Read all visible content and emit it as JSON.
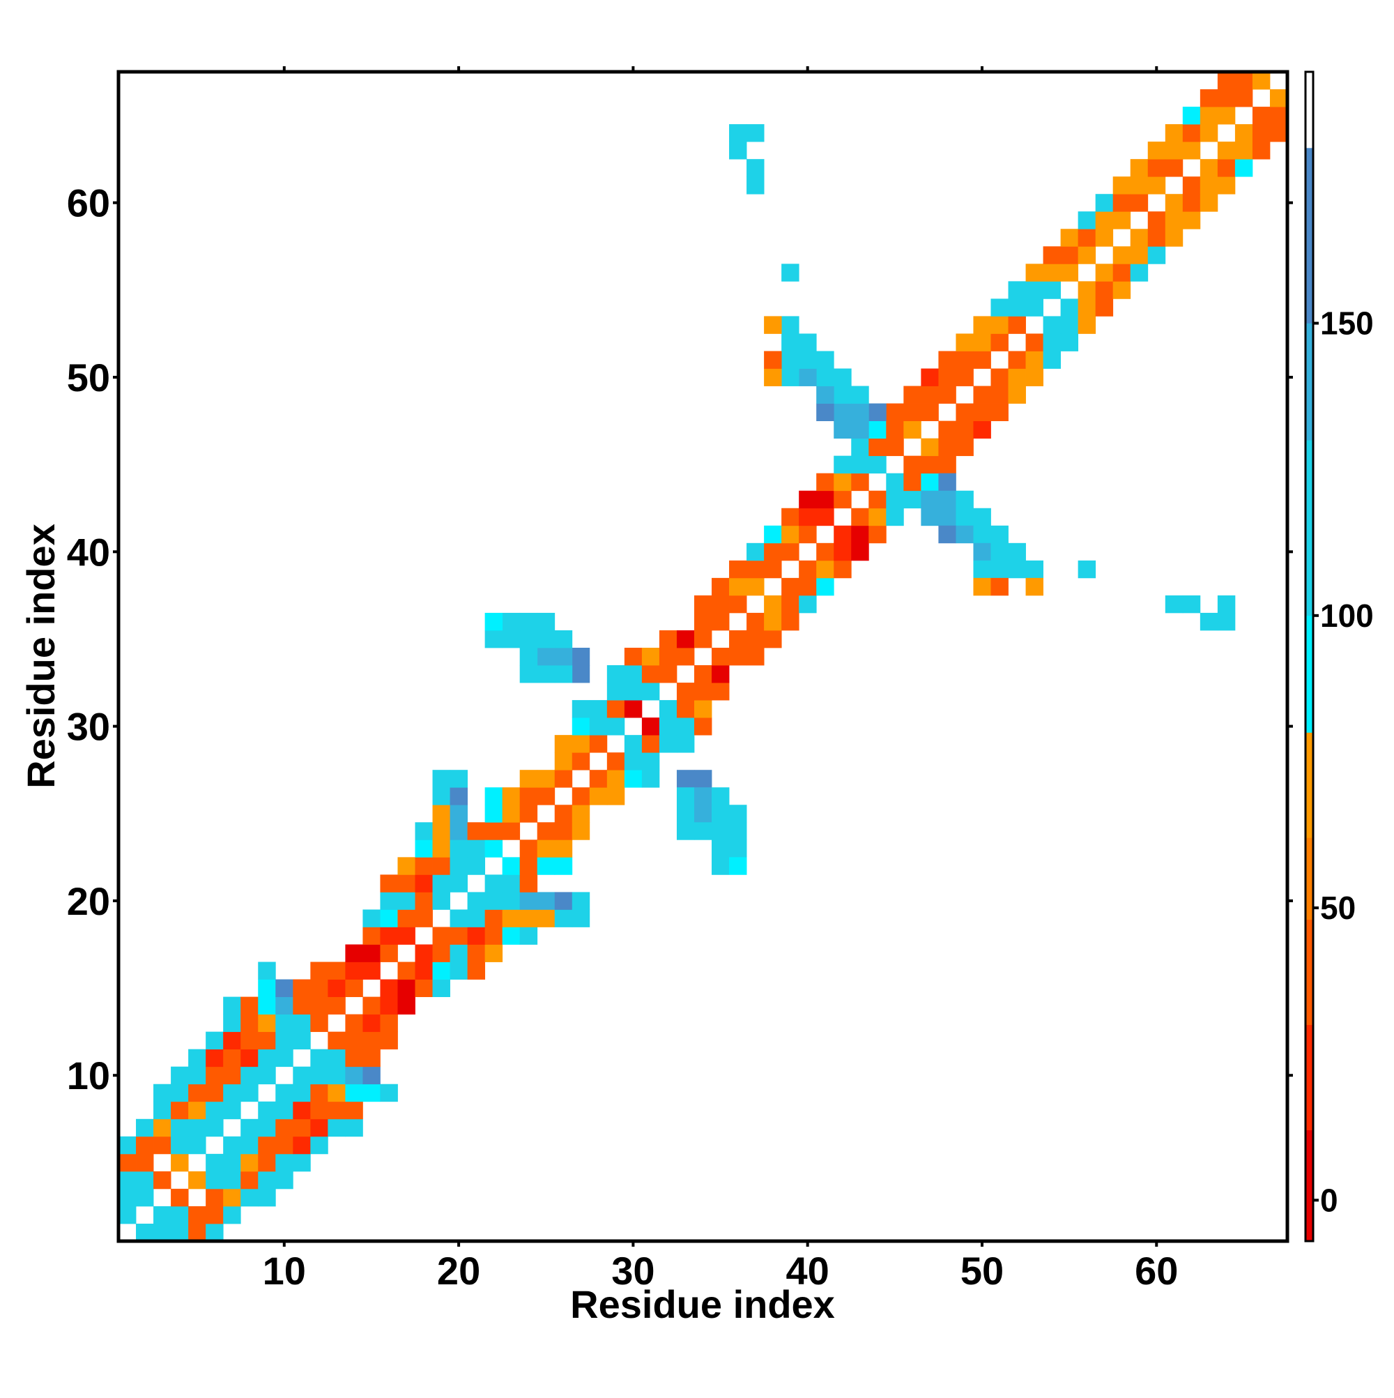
{
  "chart_data": {
    "type": "heatmap",
    "xlabel": "Residue index",
    "ylabel": "Residue index",
    "xlim": [
      0.5,
      67.5
    ],
    "ylim": [
      0.5,
      67.5
    ],
    "xticks": [
      10,
      20,
      30,
      40,
      50,
      60
    ],
    "yticks": [
      10,
      20,
      30,
      40,
      50,
      60
    ],
    "symmetric": true,
    "clim": [
      -7,
      193
    ],
    "cticks": [
      0,
      50,
      100,
      150
    ],
    "colorscale": [
      {
        "value": -7,
        "color": "#e60000"
      },
      {
        "value": 12,
        "color": "#ff2a00"
      },
      {
        "value": 30,
        "color": "#ff5a00"
      },
      {
        "value": 48,
        "color": "#ff7f00"
      },
      {
        "value": 62,
        "color": "#ff9a00"
      },
      {
        "value": 80,
        "color": "#00f0ff"
      },
      {
        "value": 100,
        "color": "#1ed2e8"
      },
      {
        "value": 130,
        "color": "#36b0dc"
      },
      {
        "value": 150,
        "color": "#4a88c8"
      },
      {
        "value": 180,
        "color": "#ffffff"
      }
    ],
    "cells": [
      [
        2,
        1,
        120
      ],
      [
        3,
        1,
        120
      ],
      [
        4,
        1,
        120
      ],
      [
        5,
        1,
        40
      ],
      [
        6,
        1,
        120
      ],
      [
        3,
        2,
        120
      ],
      [
        4,
        2,
        120
      ],
      [
        5,
        2,
        40
      ],
      [
        6,
        2,
        40
      ],
      [
        7,
        2,
        120
      ],
      [
        4,
        3,
        40
      ],
      [
        6,
        3,
        40
      ],
      [
        7,
        3,
        65
      ],
      [
        8,
        3,
        120
      ],
      [
        9,
        3,
        120
      ],
      [
        5,
        4,
        65
      ],
      [
        6,
        4,
        120
      ],
      [
        7,
        4,
        120
      ],
      [
        8,
        4,
        40
      ],
      [
        9,
        4,
        120
      ],
      [
        10,
        4,
        120
      ],
      [
        6,
        5,
        120
      ],
      [
        7,
        5,
        120
      ],
      [
        8,
        5,
        65
      ],
      [
        9,
        5,
        40
      ],
      [
        10,
        5,
        120
      ],
      [
        11,
        5,
        120
      ],
      [
        7,
        6,
        120
      ],
      [
        8,
        6,
        120
      ],
      [
        9,
        6,
        40
      ],
      [
        10,
        6,
        40
      ],
      [
        11,
        6,
        25
      ],
      [
        12,
        6,
        120
      ],
      [
        8,
        7,
        120
      ],
      [
        9,
        7,
        120
      ],
      [
        10,
        7,
        40
      ],
      [
        11,
        7,
        40
      ],
      [
        12,
        7,
        25
      ],
      [
        13,
        7,
        120
      ],
      [
        14,
        7,
        120
      ],
      [
        9,
        8,
        120
      ],
      [
        10,
        8,
        120
      ],
      [
        11,
        8,
        25
      ],
      [
        12,
        8,
        40
      ],
      [
        13,
        8,
        40
      ],
      [
        14,
        8,
        40
      ],
      [
        10,
        9,
        120
      ],
      [
        11,
        9,
        120
      ],
      [
        12,
        9,
        40
      ],
      [
        13,
        9,
        65
      ],
      [
        14,
        9,
        90
      ],
      [
        15,
        9,
        90
      ],
      [
        16,
        9,
        120
      ],
      [
        11,
        10,
        120
      ],
      [
        12,
        10,
        120
      ],
      [
        13,
        10,
        120
      ],
      [
        14,
        10,
        140
      ],
      [
        15,
        10,
        165
      ],
      [
        12,
        11,
        120
      ],
      [
        13,
        11,
        120
      ],
      [
        14,
        11,
        40
      ],
      [
        15,
        11,
        40
      ],
      [
        13,
        12,
        40
      ],
      [
        14,
        12,
        40
      ],
      [
        15,
        12,
        40
      ],
      [
        16,
        12,
        40
      ],
      [
        14,
        13,
        40
      ],
      [
        15,
        13,
        25
      ],
      [
        16,
        13,
        40
      ],
      [
        15,
        14,
        40
      ],
      [
        16,
        14,
        25
      ],
      [
        17,
        14,
        5
      ],
      [
        16,
        15,
        25
      ],
      [
        17,
        15,
        5
      ],
      [
        18,
        15,
        40
      ],
      [
        19,
        15,
        120
      ],
      [
        17,
        16,
        40
      ],
      [
        18,
        16,
        25
      ],
      [
        19,
        16,
        90
      ],
      [
        20,
        16,
        120
      ],
      [
        21,
        16,
        40
      ],
      [
        18,
        17,
        25
      ],
      [
        19,
        17,
        40
      ],
      [
        20,
        17,
        120
      ],
      [
        21,
        17,
        40
      ],
      [
        22,
        17,
        65
      ],
      [
        19,
        18,
        40
      ],
      [
        20,
        18,
        40
      ],
      [
        21,
        18,
        25
      ],
      [
        22,
        18,
        40
      ],
      [
        23,
        18,
        90
      ],
      [
        24,
        18,
        120
      ],
      [
        20,
        19,
        120
      ],
      [
        21,
        19,
        120
      ],
      [
        22,
        19,
        40
      ],
      [
        23,
        19,
        65
      ],
      [
        24,
        19,
        65
      ],
      [
        25,
        19,
        65
      ],
      [
        26,
        19,
        120
      ],
      [
        27,
        19,
        120
      ],
      [
        21,
        20,
        120
      ],
      [
        22,
        20,
        120
      ],
      [
        23,
        20,
        120
      ],
      [
        24,
        20,
        140
      ],
      [
        25,
        20,
        140
      ],
      [
        26,
        20,
        165
      ],
      [
        27,
        20,
        120
      ],
      [
        22,
        21,
        120
      ],
      [
        23,
        21,
        120
      ],
      [
        24,
        21,
        40
      ],
      [
        23,
        22,
        90
      ],
      [
        24,
        22,
        40
      ],
      [
        25,
        22,
        90
      ],
      [
        26,
        22,
        90
      ],
      [
        24,
        23,
        40
      ],
      [
        25,
        23,
        65
      ],
      [
        26,
        23,
        65
      ],
      [
        25,
        24,
        40
      ],
      [
        26,
        24,
        40
      ],
      [
        27,
        24,
        65
      ],
      [
        26,
        25,
        40
      ],
      [
        27,
        25,
        65
      ],
      [
        27,
        26,
        40
      ],
      [
        28,
        26,
        65
      ],
      [
        29,
        26,
        65
      ],
      [
        28,
        27,
        40
      ],
      [
        29,
        27,
        65
      ],
      [
        30,
        27,
        90
      ],
      [
        31,
        27,
        120
      ],
      [
        29,
        28,
        40
      ],
      [
        30,
        28,
        120
      ],
      [
        31,
        28,
        120
      ],
      [
        30,
        29,
        120
      ],
      [
        31,
        29,
        40
      ],
      [
        32,
        29,
        120
      ],
      [
        33,
        29,
        120
      ],
      [
        31,
        30,
        5
      ],
      [
        32,
        30,
        120
      ],
      [
        33,
        30,
        120
      ],
      [
        34,
        30,
        40
      ],
      [
        32,
        31,
        120
      ],
      [
        33,
        31,
        40
      ],
      [
        34,
        31,
        65
      ],
      [
        33,
        32,
        40
      ],
      [
        34,
        32,
        40
      ],
      [
        35,
        32,
        40
      ],
      [
        34,
        33,
        40
      ],
      [
        35,
        33,
        5
      ],
      [
        35,
        34,
        40
      ],
      [
        36,
        34,
        40
      ],
      [
        37,
        34,
        40
      ],
      [
        36,
        35,
        40
      ],
      [
        37,
        35,
        40
      ],
      [
        38,
        35,
        40
      ],
      [
        37,
        36,
        40
      ],
      [
        38,
        36,
        65
      ],
      [
        39,
        36,
        40
      ],
      [
        38,
        37,
        65
      ],
      [
        39,
        37,
        40
      ],
      [
        40,
        37,
        120
      ],
      [
        39,
        38,
        40
      ],
      [
        40,
        38,
        40
      ],
      [
        41,
        38,
        90
      ],
      [
        40,
        39,
        40
      ],
      [
        41,
        39,
        65
      ],
      [
        42,
        39,
        40
      ],
      [
        41,
        40,
        40
      ],
      [
        42,
        40,
        25
      ],
      [
        43,
        40,
        5
      ],
      [
        42,
        41,
        25
      ],
      [
        43,
        41,
        5
      ],
      [
        44,
        41,
        40
      ],
      [
        43,
        42,
        40
      ],
      [
        44,
        42,
        65
      ],
      [
        45,
        42,
        120
      ],
      [
        44,
        43,
        40
      ],
      [
        45,
        43,
        120
      ],
      [
        46,
        43,
        120
      ],
      [
        45,
        44,
        120
      ],
      [
        46,
        44,
        40
      ],
      [
        47,
        44,
        90
      ],
      [
        46,
        45,
        40
      ],
      [
        47,
        45,
        40
      ],
      [
        48,
        45,
        40
      ],
      [
        47,
        46,
        65
      ],
      [
        48,
        46,
        40
      ],
      [
        49,
        46,
        40
      ],
      [
        48,
        47,
        40
      ],
      [
        49,
        47,
        40
      ],
      [
        50,
        47,
        25
      ],
      [
        49,
        48,
        40
      ],
      [
        50,
        48,
        40
      ],
      [
        51,
        48,
        40
      ],
      [
        50,
        49,
        40
      ],
      [
        51,
        49,
        40
      ],
      [
        52,
        49,
        65
      ],
      [
        51,
        50,
        40
      ],
      [
        52,
        50,
        65
      ],
      [
        53,
        50,
        65
      ],
      [
        52,
        51,
        40
      ],
      [
        53,
        51,
        65
      ],
      [
        54,
        51,
        120
      ],
      [
        53,
        52,
        40
      ],
      [
        54,
        52,
        120
      ],
      [
        55,
        52,
        120
      ],
      [
        54,
        53,
        120
      ],
      [
        55,
        53,
        120
      ],
      [
        56,
        53,
        65
      ],
      [
        55,
        54,
        120
      ],
      [
        56,
        54,
        65
      ],
      [
        57,
        54,
        40
      ],
      [
        56,
        55,
        65
      ],
      [
        57,
        55,
        40
      ],
      [
        58,
        55,
        65
      ],
      [
        57,
        56,
        65
      ],
      [
        58,
        56,
        40
      ],
      [
        59,
        56,
        120
      ],
      [
        58,
        57,
        65
      ],
      [
        59,
        57,
        65
      ],
      [
        60,
        57,
        120
      ],
      [
        59,
        58,
        65
      ],
      [
        60,
        58,
        40
      ],
      [
        61,
        58,
        65
      ],
      [
        60,
        59,
        40
      ],
      [
        61,
        59,
        65
      ],
      [
        62,
        59,
        65
      ],
      [
        61,
        60,
        65
      ],
      [
        62,
        60,
        40
      ],
      [
        63,
        60,
        65
      ],
      [
        62,
        61,
        40
      ],
      [
        63,
        61,
        65
      ],
      [
        64,
        61,
        65
      ],
      [
        63,
        62,
        65
      ],
      [
        64,
        62,
        40
      ],
      [
        65,
        62,
        90
      ],
      [
        64,
        63,
        65
      ],
      [
        65,
        63,
        65
      ],
      [
        66,
        63,
        40
      ],
      [
        65,
        64,
        65
      ],
      [
        66,
        64,
        40
      ],
      [
        67,
        64,
        40
      ],
      [
        66,
        65,
        40
      ],
      [
        67,
        65,
        40
      ],
      [
        67,
        66,
        65
      ],
      [
        33,
        27,
        165
      ],
      [
        34,
        27,
        165
      ],
      [
        33,
        26,
        120
      ],
      [
        34,
        26,
        140
      ],
      [
        35,
        26,
        120
      ],
      [
        33,
        25,
        120
      ],
      [
        34,
        25,
        140
      ],
      [
        35,
        25,
        120
      ],
      [
        36,
        25,
        120
      ],
      [
        33,
        24,
        120
      ],
      [
        34,
        24,
        120
      ],
      [
        35,
        24,
        120
      ],
      [
        36,
        24,
        120
      ],
      [
        35,
        23,
        120
      ],
      [
        36,
        23,
        120
      ],
      [
        35,
        22,
        120
      ],
      [
        36,
        22,
        90
      ],
      [
        48,
        44,
        165
      ],
      [
        47,
        43,
        140
      ],
      [
        48,
        43,
        140
      ],
      [
        49,
        43,
        120
      ],
      [
        47,
        42,
        140
      ],
      [
        48,
        42,
        140
      ],
      [
        49,
        42,
        120
      ],
      [
        50,
        42,
        120
      ],
      [
        48,
        41,
        165
      ],
      [
        49,
        41,
        140
      ],
      [
        50,
        41,
        120
      ],
      [
        51,
        41,
        120
      ],
      [
        50,
        40,
        140
      ],
      [
        51,
        40,
        120
      ],
      [
        52,
        40,
        120
      ],
      [
        50,
        39,
        120
      ],
      [
        51,
        39,
        120
      ],
      [
        52,
        39,
        120
      ],
      [
        53,
        39,
        120
      ],
      [
        50,
        38,
        65
      ],
      [
        51,
        38,
        40
      ],
      [
        53,
        38,
        65
      ],
      [
        56,
        39,
        120
      ],
      [
        61,
        37,
        120
      ],
      [
        62,
        37,
        120
      ],
      [
        63,
        36,
        120
      ],
      [
        64,
        36,
        120
      ],
      [
        64,
        37,
        120
      ]
    ]
  }
}
